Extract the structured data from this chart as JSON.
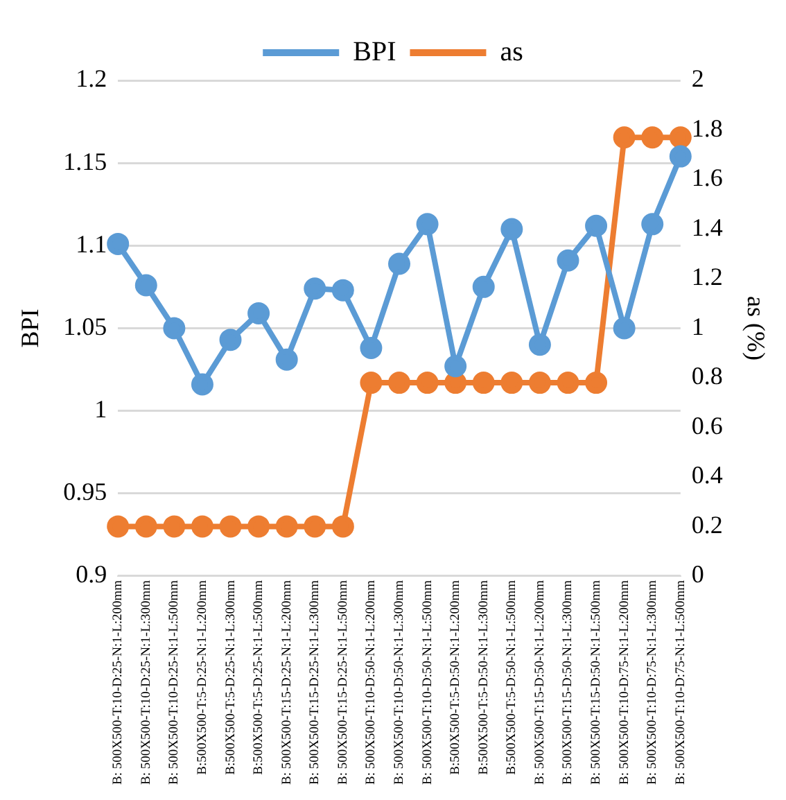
{
  "chart_data": {
    "type": "line",
    "ylabel": "BPI",
    "y2label": "as (%)",
    "categories": [
      "B: 500X500-T:10-D:25-N:1-L:200mm",
      "B: 500X500-T:10-D:25-N:1-L:300mm",
      "B: 500X500-T:10-D:25-N:1-L:500mm",
      "B:500X500-T:5-D:25-N:1-L:200mm",
      "B:500X500-T:5-D:25-N:1-L:300mm",
      "B:500X500-T:5-D:25-N:1-L:500mm",
      "B: 500X500-T:15-D:25-N:1-L:200mm",
      "B: 500X500-T:15-D:25-N:1-L:300mm",
      "B: 500X500-T:15-D:25-N:1-L:500mm",
      "B: 500X500-T:10-D:50-N:1-L:200mm",
      "B: 500X500-T:10-D:50-N:1-L:300mm",
      "B: 500X500-T:10-D:50-N:1-L:500mm",
      "B:500X500-T:5-D:50-N:1-L:200mm",
      "B:500X500-T:5-D:50-N:1-L:300mm",
      "B:500X500-T:5-D:50-N:1-L:500mm",
      "B: 500X500-T:15-D:50-N:1-L:200mm",
      "B: 500X500-T:15-D:50-N:1-L:300mm",
      "B: 500X500-T:15-D:50-N:1-L:500mm",
      "B: 500X500-T:10-D:75-N:1-L:200mm",
      "B: 500X500-T:10-D:75-N:1-L:300mm",
      "B: 500X500-T:10-D:75-N:1-L:500mm"
    ],
    "series": [
      {
        "name": "BPI",
        "color": "#5b9bd5",
        "values": [
          1.101,
          1.076,
          1.05,
          1.016,
          1.043,
          1.059,
          1.031,
          1.074,
          1.073,
          1.038,
          1.089,
          1.113,
          1.027,
          1.075,
          1.11,
          1.04,
          1.091,
          1.112,
          1.05,
          1.113,
          1.154
        ]
      },
      {
        "name": "as",
        "color": "#ed7d31",
        "axis": "y2",
        "values": [
          0.2,
          0.2,
          0.2,
          0.2,
          0.2,
          0.2,
          0.2,
          0.2,
          0.2,
          0.78,
          0.78,
          0.78,
          0.78,
          0.78,
          0.78,
          0.78,
          0.78,
          0.78,
          1.77,
          1.77,
          1.77
        ]
      }
    ],
    "ylim": [
      0.9,
      1.2
    ],
    "yticks": [
      0.9,
      0.95,
      1,
      1.05,
      1.1,
      1.15,
      1.2
    ],
    "y2lim": [
      0,
      2
    ],
    "y2ticks": [
      0,
      0.2,
      0.4,
      0.6,
      0.8,
      1,
      1.2,
      1.4,
      1.6,
      1.8,
      2
    ],
    "grid": "y",
    "legend": "top",
    "marker": "circle",
    "line_style": "solid"
  }
}
